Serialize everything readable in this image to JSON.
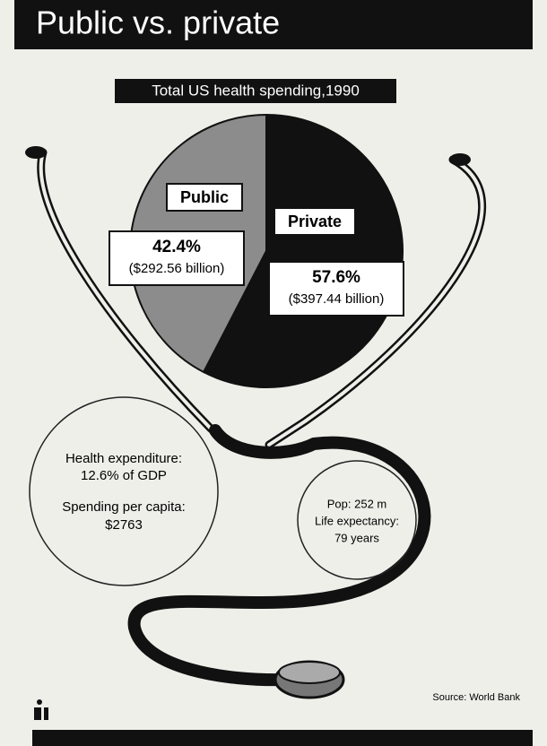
{
  "chart_data": {
    "type": "pie",
    "title": "Public vs. private",
    "subtitle": "Total US health spending,1990",
    "categories": [
      "Public",
      "Private"
    ],
    "values": [
      42.4,
      57.6
    ],
    "value_labels": [
      "42.4%",
      "57.6%"
    ],
    "amount_labels": [
      "($292.56 billion)",
      "($397.44 billion)"
    ],
    "colors": [
      "#8c8c8c",
      "#111111"
    ],
    "annotations": [
      "Health expenditure:",
      "12.6% of GDP",
      "Spending per capita:",
      "$2763",
      "Pop: 252 m",
      "Life expectancy:",
      "79 years"
    ],
    "source": "Source: World Bank"
  }
}
